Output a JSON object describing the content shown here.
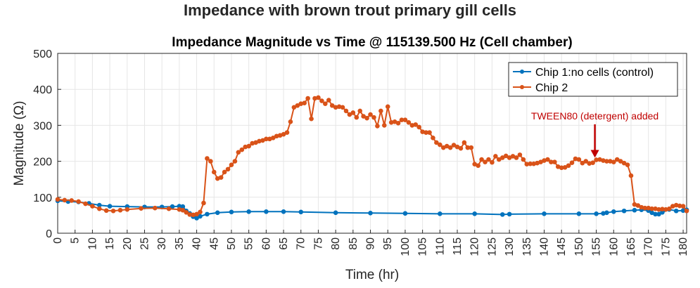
{
  "suptitle": "Impedance with brown trout primary gill cells",
  "colors": {
    "series1": "#0072BD",
    "series2": "#D95319",
    "annotation": "#C00000",
    "grid": "#E6E6E6",
    "axis": "#262626"
  },
  "chart_data": {
    "type": "line",
    "title": "Impedance Magnitude vs Time @ 115139.500 Hz (Cell chamber)",
    "xlabel": "Time (hr)",
    "ylabel": "Magnitude (Ω)",
    "xlim": [
      0,
      181
    ],
    "ylim": [
      0,
      500
    ],
    "xticks": [
      0,
      5,
      10,
      15,
      20,
      25,
      30,
      35,
      40,
      45,
      50,
      55,
      60,
      65,
      70,
      75,
      80,
      85,
      90,
      95,
      100,
      105,
      110,
      115,
      120,
      125,
      130,
      135,
      140,
      145,
      150,
      155,
      160,
      165,
      170,
      175,
      180
    ],
    "yticks": [
      0,
      100,
      200,
      300,
      400,
      500
    ],
    "grid": true,
    "legend_position": "top-right",
    "series": [
      {
        "name": "Chip 1:no cells (control)",
        "color": "#0072BD",
        "points": [
          [
            0,
            90
          ],
          [
            3,
            88
          ],
          [
            6,
            87
          ],
          [
            9,
            83
          ],
          [
            12,
            78
          ],
          [
            15,
            75
          ],
          [
            20,
            74
          ],
          [
            25,
            73
          ],
          [
            30,
            73
          ],
          [
            33,
            74
          ],
          [
            35,
            75
          ],
          [
            36,
            74
          ],
          [
            37,
            62
          ],
          [
            38,
            55
          ],
          [
            39,
            46
          ],
          [
            40,
            42
          ],
          [
            41,
            47
          ],
          [
            43,
            53
          ],
          [
            46,
            57
          ],
          [
            50,
            59
          ],
          [
            55,
            60
          ],
          [
            60,
            60
          ],
          [
            65,
            60
          ],
          [
            70,
            59
          ],
          [
            80,
            57
          ],
          [
            90,
            56
          ],
          [
            100,
            55
          ],
          [
            110,
            54
          ],
          [
            120,
            54
          ],
          [
            128,
            52
          ],
          [
            130,
            53
          ],
          [
            140,
            54
          ],
          [
            150,
            54
          ],
          [
            155,
            54
          ],
          [
            157,
            55
          ],
          [
            158,
            57
          ],
          [
            160,
            60
          ],
          [
            163,
            62
          ],
          [
            166,
            64
          ],
          [
            168,
            65
          ],
          [
            170,
            63
          ],
          [
            171,
            57
          ],
          [
            172,
            53
          ],
          [
            173,
            53
          ],
          [
            174,
            58
          ],
          [
            176,
            66
          ],
          [
            178,
            62
          ],
          [
            180,
            63
          ],
          [
            181,
            65
          ]
        ]
      },
      {
        "name": "Chip 2",
        "color": "#D95319",
        "points": [
          [
            0,
            94
          ],
          [
            2,
            92
          ],
          [
            4,
            91
          ],
          [
            6,
            88
          ],
          [
            8,
            82
          ],
          [
            10,
            75
          ],
          [
            12,
            68
          ],
          [
            14,
            63
          ],
          [
            16,
            62
          ],
          [
            18,
            64
          ],
          [
            20,
            66
          ],
          [
            24,
            69
          ],
          [
            28,
            70
          ],
          [
            32,
            68
          ],
          [
            35,
            66
          ],
          [
            36,
            64
          ],
          [
            37,
            58
          ],
          [
            38,
            52
          ],
          [
            39,
            51
          ],
          [
            40,
            53
          ],
          [
            41,
            59
          ],
          [
            42,
            84
          ],
          [
            43,
            208
          ],
          [
            44,
            200
          ],
          [
            45,
            170
          ],
          [
            46,
            152
          ],
          [
            47,
            155
          ],
          [
            48,
            170
          ],
          [
            49,
            178
          ],
          [
            50,
            190
          ],
          [
            51,
            200
          ],
          [
            52,
            225
          ],
          [
            53,
            232
          ],
          [
            54,
            240
          ],
          [
            55,
            242
          ],
          [
            56,
            250
          ],
          [
            57,
            252
          ],
          [
            58,
            256
          ],
          [
            59,
            258
          ],
          [
            60,
            262
          ],
          [
            61,
            262
          ],
          [
            62,
            265
          ],
          [
            63,
            270
          ],
          [
            64,
            272
          ],
          [
            65,
            275
          ],
          [
            66,
            280
          ],
          [
            67,
            310
          ],
          [
            68,
            350
          ],
          [
            69,
            355
          ],
          [
            70,
            360
          ],
          [
            71,
            362
          ],
          [
            72,
            375
          ],
          [
            73,
            318
          ],
          [
            74,
            375
          ],
          [
            75,
            377
          ],
          [
            76,
            368
          ],
          [
            77,
            360
          ],
          [
            78,
            370
          ],
          [
            79,
            355
          ],
          [
            80,
            350
          ],
          [
            81,
            352
          ],
          [
            82,
            350
          ],
          [
            83,
            340
          ],
          [
            84,
            330
          ],
          [
            85,
            335
          ],
          [
            86,
            322
          ],
          [
            87,
            340
          ],
          [
            88,
            325
          ],
          [
            89,
            320
          ],
          [
            90,
            330
          ],
          [
            91,
            322
          ],
          [
            92,
            298
          ],
          [
            93,
            340
          ],
          [
            94,
            300
          ],
          [
            95,
            352
          ],
          [
            96,
            308
          ],
          [
            97,
            310
          ],
          [
            98,
            306
          ],
          [
            99,
            315
          ],
          [
            100,
            315
          ],
          [
            101,
            308
          ],
          [
            102,
            300
          ],
          [
            103,
            302
          ],
          [
            104,
            295
          ],
          [
            105,
            282
          ],
          [
            106,
            280
          ],
          [
            107,
            280
          ],
          [
            108,
            265
          ],
          [
            109,
            252
          ],
          [
            110,
            246
          ],
          [
            111,
            238
          ],
          [
            112,
            242
          ],
          [
            113,
            238
          ],
          [
            114,
            245
          ],
          [
            115,
            240
          ],
          [
            116,
            236
          ],
          [
            117,
            252
          ],
          [
            118,
            238
          ],
          [
            119,
            238
          ],
          [
            120,
            192
          ],
          [
            121,
            188
          ],
          [
            122,
            205
          ],
          [
            123,
            198
          ],
          [
            124,
            205
          ],
          [
            125,
            197
          ],
          [
            126,
            214
          ],
          [
            127,
            205
          ],
          [
            128,
            210
          ],
          [
            129,
            215
          ],
          [
            130,
            210
          ],
          [
            131,
            214
          ],
          [
            132,
            210
          ],
          [
            133,
            218
          ],
          [
            134,
            205
          ],
          [
            135,
            192
          ],
          [
            136,
            193
          ],
          [
            137,
            193
          ],
          [
            138,
            195
          ],
          [
            139,
            198
          ],
          [
            140,
            202
          ],
          [
            141,
            205
          ],
          [
            142,
            198
          ],
          [
            143,
            198
          ],
          [
            144,
            185
          ],
          [
            145,
            182
          ],
          [
            146,
            183
          ],
          [
            147,
            188
          ],
          [
            148,
            196
          ],
          [
            149,
            207
          ],
          [
            150,
            205
          ],
          [
            151,
            195
          ],
          [
            152,
            200
          ],
          [
            153,
            194
          ],
          [
            154,
            196
          ],
          [
            155,
            204
          ],
          [
            156,
            205
          ],
          [
            157,
            202
          ],
          [
            158,
            200
          ],
          [
            159,
            200
          ],
          [
            160,
            198
          ],
          [
            161,
            205
          ],
          [
            162,
            200
          ],
          [
            163,
            195
          ],
          [
            164,
            190
          ],
          [
            165,
            160
          ],
          [
            166,
            80
          ],
          [
            167,
            77
          ],
          [
            168,
            72
          ],
          [
            169,
            70
          ],
          [
            170,
            70
          ],
          [
            171,
            68
          ],
          [
            172,
            68
          ],
          [
            173,
            66
          ],
          [
            174,
            67
          ],
          [
            175,
            66
          ],
          [
            176,
            68
          ],
          [
            177,
            75
          ],
          [
            178,
            78
          ],
          [
            179,
            76
          ],
          [
            180,
            75
          ],
          [
            181,
            62
          ]
        ]
      }
    ],
    "annotation": {
      "text": "TWEEN80 (detergent) added",
      "x": 155,
      "y": 208
    }
  }
}
